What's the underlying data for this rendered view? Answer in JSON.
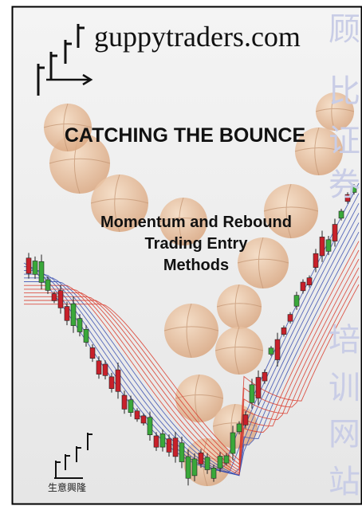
{
  "cover": {
    "logo": "guppytraders.com",
    "title": "CATCHING THE BOUNCE",
    "subtitle": [
      "Momentum and Rebound",
      "Trading Entry",
      "Methods"
    ],
    "side_text": [
      "顾",
      "比",
      "证",
      "券",
      "培",
      "训",
      "网",
      "站"
    ],
    "footer": "生意興隆"
  }
}
